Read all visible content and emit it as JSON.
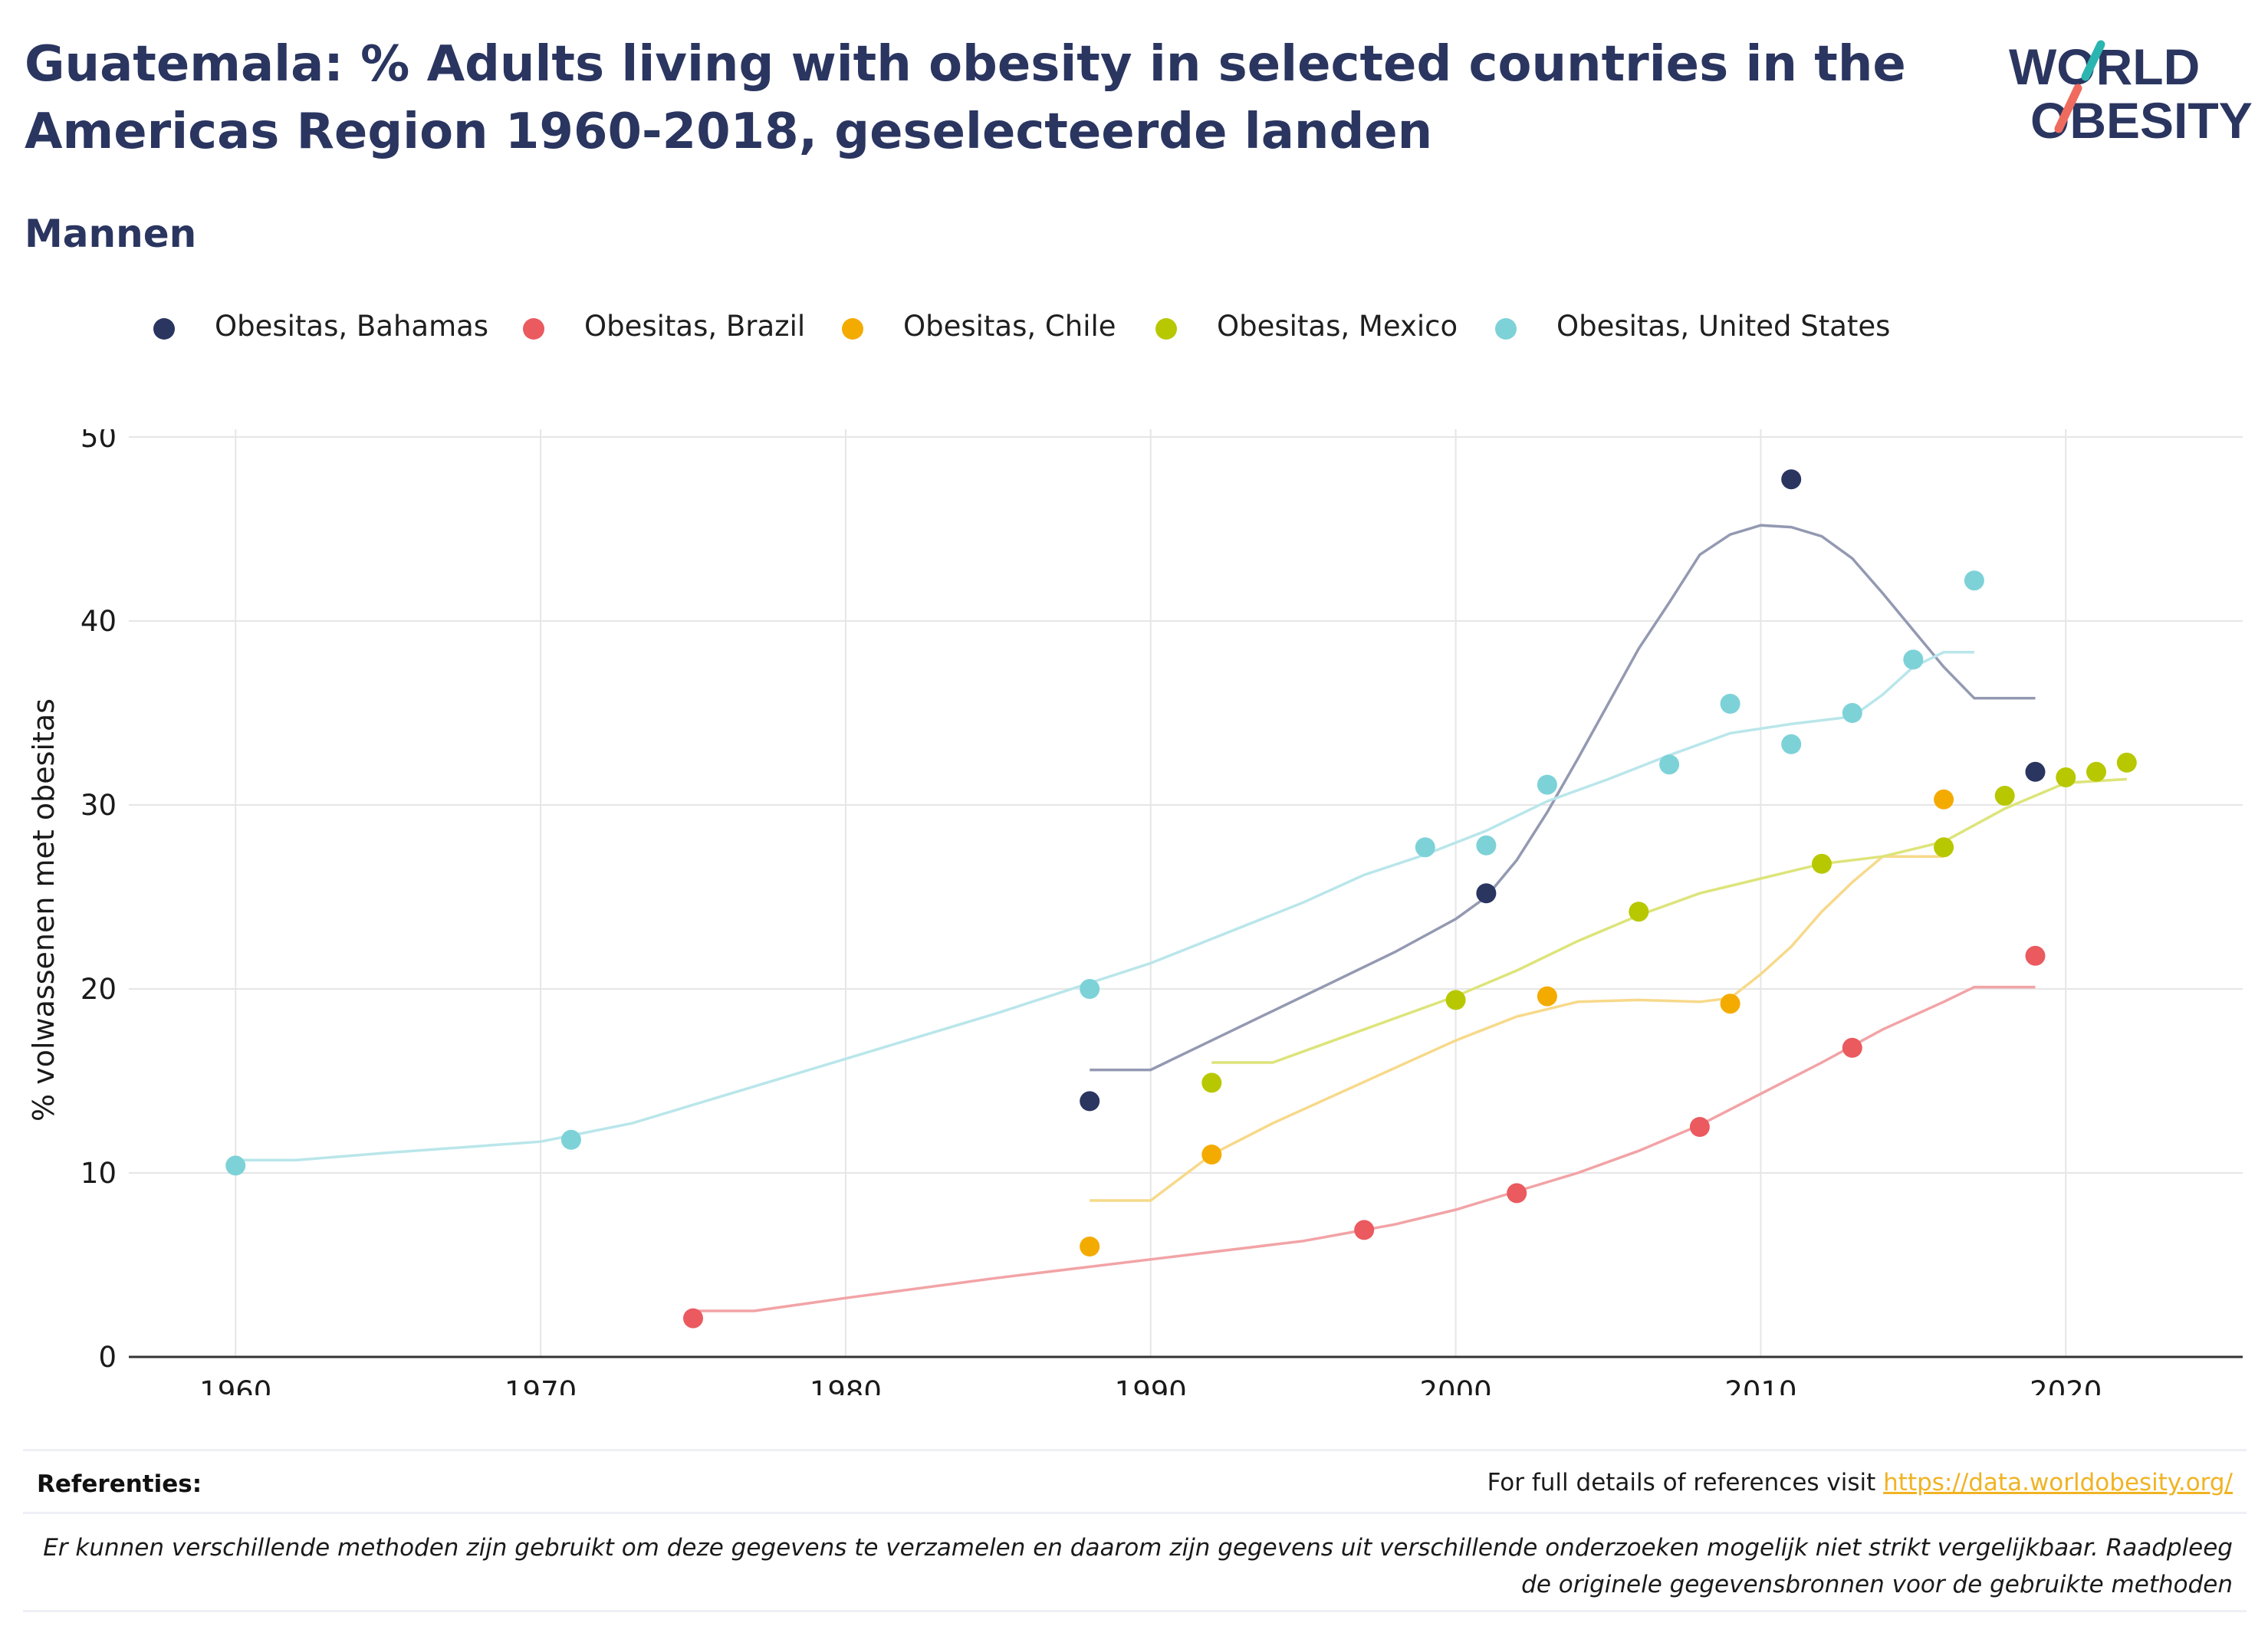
{
  "header": {
    "title": "Guatemala: % Adults living with obesity in selected countries in the Americas Region 1960-2018, geselecteerde landen",
    "subtitle": "Mannen"
  },
  "logo": {
    "line1": "WORLD",
    "line2": "OBESITY",
    "accent_teal": "#2bb5b0",
    "accent_coral": "#ef6b5e",
    "color": "#2a3560"
  },
  "footer": {
    "references_label": "Referenties:",
    "references_text": "For full details of references visit ",
    "references_link": "https://data.worldobesity.org/",
    "disclaimer": "Er kunnen verschillende methoden zijn gebruikt om deze gegevens te verzamelen en daarom zijn gegevens uit verschillende onderzoeken mogelijk niet strikt vergelijkbaar. Raadpleeg de originele gegevensbronnen voor de gebruikte methoden"
  },
  "chart_data": {
    "type": "scatter",
    "ylabel": "% volwassenen met obesitas",
    "xlim": [
      1956.5,
      2025.8
    ],
    "ylim": [
      0,
      50
    ],
    "x_ticks": [
      1960,
      1970,
      1980,
      1990,
      2000,
      2010,
      2020
    ],
    "y_ticks": [
      0,
      10,
      20,
      30,
      40,
      50
    ],
    "grid": true,
    "legend_position": "top",
    "series": [
      {
        "name": "Obesitas, Bahamas",
        "color": "#2a3560",
        "line_color": "#9499b2",
        "points": [
          [
            1988,
            13.9
          ],
          [
            2001,
            25.2
          ],
          [
            2011,
            47.7
          ],
          [
            2019,
            31.8
          ]
        ],
        "trend": [
          [
            1988,
            15.6
          ],
          [
            1990,
            15.6
          ],
          [
            1992,
            17.2
          ],
          [
            1994,
            18.8
          ],
          [
            1996,
            20.4
          ],
          [
            1998,
            22.0
          ],
          [
            2000,
            23.8
          ],
          [
            2001,
            25.0
          ],
          [
            2002,
            27.0
          ],
          [
            2003,
            29.6
          ],
          [
            2004,
            32.5
          ],
          [
            2005,
            35.5
          ],
          [
            2006,
            38.5
          ],
          [
            2007,
            41.0
          ],
          [
            2008,
            43.6
          ],
          [
            2009,
            44.7
          ],
          [
            2010,
            45.2
          ],
          [
            2011,
            45.1
          ],
          [
            2012,
            44.6
          ],
          [
            2013,
            43.4
          ],
          [
            2014,
            41.5
          ],
          [
            2015,
            39.5
          ],
          [
            2016,
            37.5
          ],
          [
            2017,
            35.8
          ],
          [
            2019,
            35.8
          ]
        ]
      },
      {
        "name": "Obesitas, Brazil",
        "color": "#ea5a5f",
        "line_color": "#f2a3a6",
        "points": [
          [
            1975,
            2.1
          ],
          [
            1997,
            6.9
          ],
          [
            2002,
            8.9
          ],
          [
            2008,
            12.5
          ],
          [
            2013,
            16.8
          ],
          [
            2019,
            21.8
          ]
        ],
        "trend": [
          [
            1975,
            2.5
          ],
          [
            1977,
            2.5
          ],
          [
            1980,
            3.2
          ],
          [
            1985,
            4.3
          ],
          [
            1990,
            5.3
          ],
          [
            1995,
            6.3
          ],
          [
            1998,
            7.2
          ],
          [
            2000,
            8.0
          ],
          [
            2002,
            9.0
          ],
          [
            2004,
            10.0
          ],
          [
            2006,
            11.2
          ],
          [
            2008,
            12.6
          ],
          [
            2010,
            14.3
          ],
          [
            2012,
            16.0
          ],
          [
            2014,
            17.8
          ],
          [
            2016,
            19.3
          ],
          [
            2017,
            20.1
          ],
          [
            2019,
            20.1
          ]
        ]
      },
      {
        "name": "Obesitas, Chile",
        "color": "#f4ab00",
        "line_color": "#f7d98a",
        "points": [
          [
            1988,
            6.0
          ],
          [
            1992,
            11.0
          ],
          [
            2003,
            19.6
          ],
          [
            2009,
            19.2
          ],
          [
            2016,
            30.3
          ]
        ],
        "trend": [
          [
            1988,
            8.5
          ],
          [
            1990,
            8.5
          ],
          [
            1992,
            11.0
          ],
          [
            1994,
            12.7
          ],
          [
            1996,
            14.2
          ],
          [
            1998,
            15.7
          ],
          [
            2000,
            17.2
          ],
          [
            2002,
            18.5
          ],
          [
            2004,
            19.3
          ],
          [
            2006,
            19.4
          ],
          [
            2008,
            19.3
          ],
          [
            2009,
            19.5
          ],
          [
            2010,
            20.8
          ],
          [
            2011,
            22.3
          ],
          [
            2012,
            24.2
          ],
          [
            2013,
            25.8
          ],
          [
            2014,
            27.2
          ],
          [
            2015,
            27.2
          ],
          [
            2016,
            27.2
          ]
        ]
      },
      {
        "name": "Obesitas, Mexico",
        "color": "#b7c800",
        "line_color": "#dde47a",
        "points": [
          [
            1992,
            14.9
          ],
          [
            2000,
            19.4
          ],
          [
            2006,
            24.2
          ],
          [
            2012,
            26.8
          ],
          [
            2016,
            27.7
          ],
          [
            2018,
            30.5
          ],
          [
            2020,
            31.5
          ],
          [
            2021,
            31.8
          ],
          [
            2022,
            32.3
          ]
        ],
        "trend": [
          [
            1992,
            16.0
          ],
          [
            1994,
            16.0
          ],
          [
            1996,
            17.2
          ],
          [
            1998,
            18.4
          ],
          [
            2000,
            19.6
          ],
          [
            2002,
            21.0
          ],
          [
            2004,
            22.6
          ],
          [
            2006,
            24.0
          ],
          [
            2008,
            25.2
          ],
          [
            2010,
            26.0
          ],
          [
            2012,
            26.8
          ],
          [
            2014,
            27.2
          ],
          [
            2016,
            28.0
          ],
          [
            2018,
            29.8
          ],
          [
            2020,
            31.2
          ],
          [
            2022,
            31.4
          ]
        ]
      },
      {
        "name": "Obesitas, United States",
        "color": "#7dd2d8",
        "line_color": "#b9e6ea",
        "points": [
          [
            1960,
            10.4
          ],
          [
            1971,
            11.8
          ],
          [
            1988,
            20.0
          ],
          [
            1999,
            27.7
          ],
          [
            2001,
            27.8
          ],
          [
            2003,
            31.1
          ],
          [
            2007,
            32.2
          ],
          [
            2009,
            35.5
          ],
          [
            2011,
            33.3
          ],
          [
            2013,
            35.0
          ],
          [
            2015,
            37.9
          ],
          [
            2017,
            42.2
          ]
        ],
        "trend": [
          [
            1960,
            10.7
          ],
          [
            1962,
            10.7
          ],
          [
            1965,
            11.1
          ],
          [
            1970,
            11.7
          ],
          [
            1973,
            12.7
          ],
          [
            1976,
            14.2
          ],
          [
            1980,
            16.2
          ],
          [
            1985,
            18.7
          ],
          [
            1990,
            21.4
          ],
          [
            1995,
            24.7
          ],
          [
            1997,
            26.2
          ],
          [
            1999,
            27.3
          ],
          [
            2001,
            28.6
          ],
          [
            2003,
            30.2
          ],
          [
            2005,
            31.4
          ],
          [
            2007,
            32.7
          ],
          [
            2009,
            33.9
          ],
          [
            2011,
            34.4
          ],
          [
            2013,
            34.8
          ],
          [
            2014,
            36.0
          ],
          [
            2015,
            37.5
          ],
          [
            2016,
            38.3
          ],
          [
            2017,
            38.3
          ]
        ]
      }
    ]
  }
}
